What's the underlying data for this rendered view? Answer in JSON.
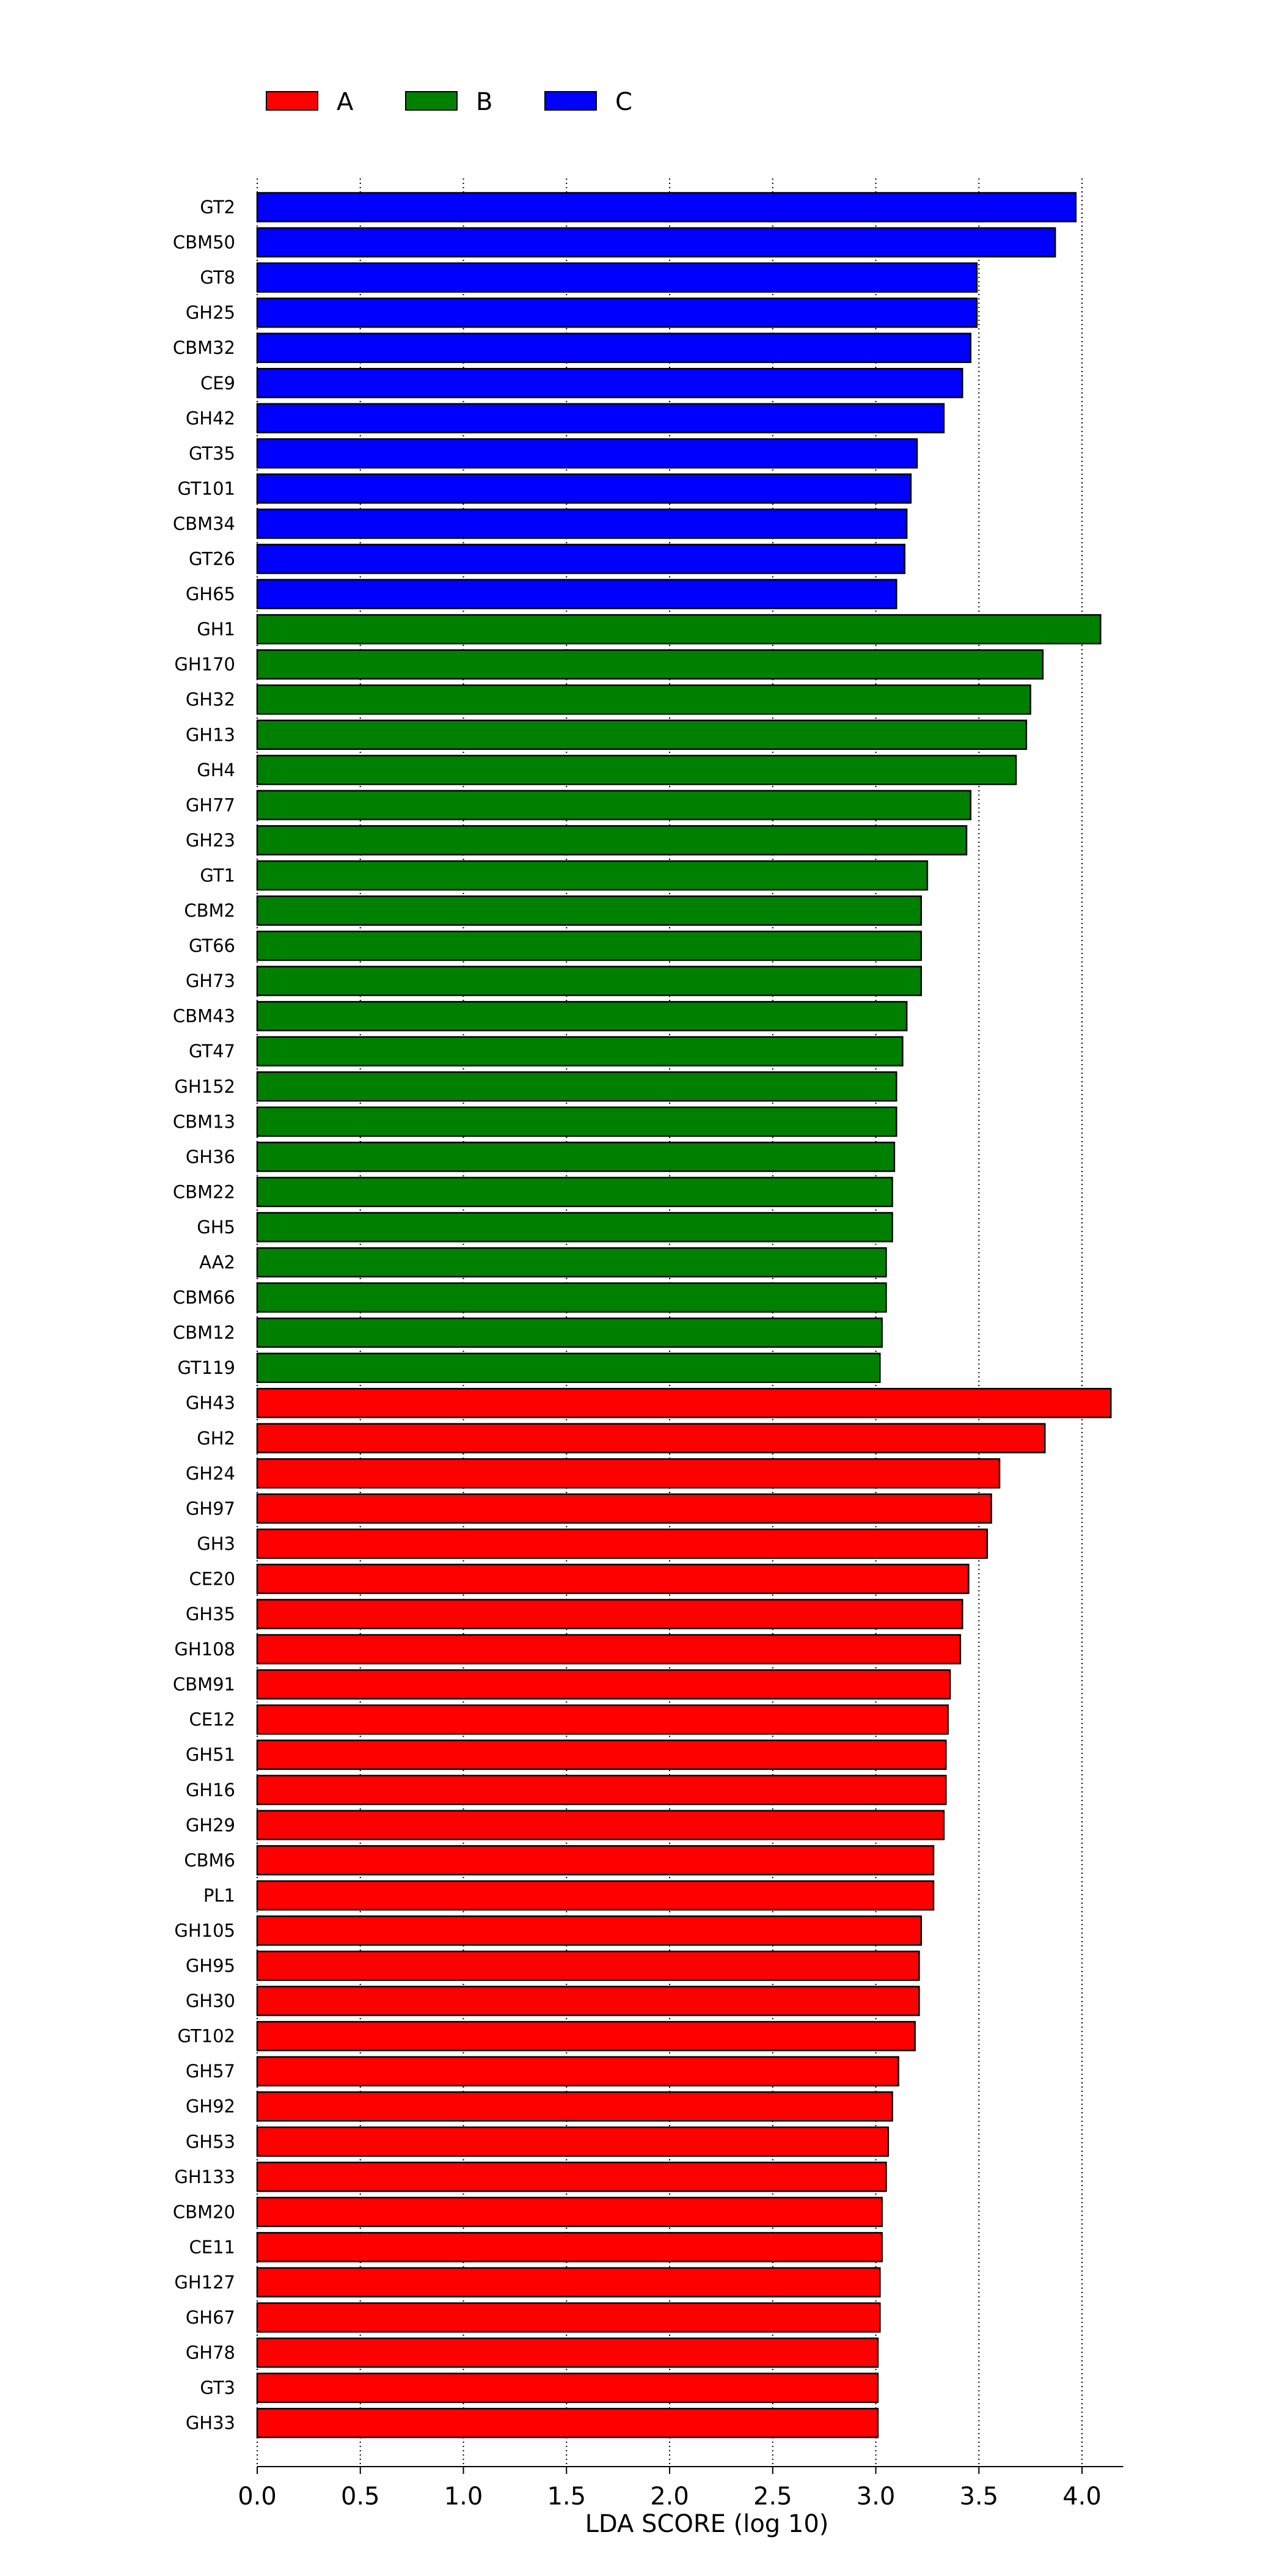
{
  "chart_data": {
    "type": "bar",
    "orientation": "horizontal",
    "xlabel": "LDA SCORE (log 10)",
    "xlim": [
      0,
      4.2
    ],
    "xticks": [
      "0.0",
      "0.5",
      "1.0",
      "1.5",
      "2.0",
      "2.5",
      "3.0",
      "3.5",
      "4.0"
    ],
    "grid": "vertical dotted",
    "legend_position": "top-left",
    "legend": [
      {
        "name": "A",
        "color": "#ff0000"
      },
      {
        "name": "B",
        "color": "#008000"
      },
      {
        "name": "C",
        "color": "#0000ff"
      }
    ],
    "bars": [
      {
        "label": "GT2",
        "value": 3.97,
        "group": "C"
      },
      {
        "label": "CBM50",
        "value": 3.87,
        "group": "C"
      },
      {
        "label": "GT8",
        "value": 3.49,
        "group": "C"
      },
      {
        "label": "GH25",
        "value": 3.49,
        "group": "C"
      },
      {
        "label": "CBM32",
        "value": 3.46,
        "group": "C"
      },
      {
        "label": "CE9",
        "value": 3.42,
        "group": "C"
      },
      {
        "label": "GH42",
        "value": 3.33,
        "group": "C"
      },
      {
        "label": "GT35",
        "value": 3.2,
        "group": "C"
      },
      {
        "label": "GT101",
        "value": 3.17,
        "group": "C"
      },
      {
        "label": "CBM34",
        "value": 3.15,
        "group": "C"
      },
      {
        "label": "GT26",
        "value": 3.14,
        "group": "C"
      },
      {
        "label": "GH65",
        "value": 3.1,
        "group": "C"
      },
      {
        "label": "GH1",
        "value": 4.09,
        "group": "B"
      },
      {
        "label": "GH170",
        "value": 3.81,
        "group": "B"
      },
      {
        "label": "GH32",
        "value": 3.75,
        "group": "B"
      },
      {
        "label": "GH13",
        "value": 3.73,
        "group": "B"
      },
      {
        "label": "GH4",
        "value": 3.68,
        "group": "B"
      },
      {
        "label": "GH77",
        "value": 3.46,
        "group": "B"
      },
      {
        "label": "GH23",
        "value": 3.44,
        "group": "B"
      },
      {
        "label": "GT1",
        "value": 3.25,
        "group": "B"
      },
      {
        "label": "CBM2",
        "value": 3.22,
        "group": "B"
      },
      {
        "label": "GT66",
        "value": 3.22,
        "group": "B"
      },
      {
        "label": "GH73",
        "value": 3.22,
        "group": "B"
      },
      {
        "label": "CBM43",
        "value": 3.15,
        "group": "B"
      },
      {
        "label": "GT47",
        "value": 3.13,
        "group": "B"
      },
      {
        "label": "GH152",
        "value": 3.1,
        "group": "B"
      },
      {
        "label": "CBM13",
        "value": 3.1,
        "group": "B"
      },
      {
        "label": "GH36",
        "value": 3.09,
        "group": "B"
      },
      {
        "label": "CBM22",
        "value": 3.08,
        "group": "B"
      },
      {
        "label": "GH5",
        "value": 3.08,
        "group": "B"
      },
      {
        "label": "AA2",
        "value": 3.05,
        "group": "B"
      },
      {
        "label": "CBM66",
        "value": 3.05,
        "group": "B"
      },
      {
        "label": "CBM12",
        "value": 3.03,
        "group": "B"
      },
      {
        "label": "GT119",
        "value": 3.02,
        "group": "B"
      },
      {
        "label": "GH43",
        "value": 4.14,
        "group": "A"
      },
      {
        "label": "GH2",
        "value": 3.82,
        "group": "A"
      },
      {
        "label": "GH24",
        "value": 3.6,
        "group": "A"
      },
      {
        "label": "GH97",
        "value": 3.56,
        "group": "A"
      },
      {
        "label": "GH3",
        "value": 3.54,
        "group": "A"
      },
      {
        "label": "CE20",
        "value": 3.45,
        "group": "A"
      },
      {
        "label": "GH35",
        "value": 3.42,
        "group": "A"
      },
      {
        "label": "GH108",
        "value": 3.41,
        "group": "A"
      },
      {
        "label": "CBM91",
        "value": 3.36,
        "group": "A"
      },
      {
        "label": "CE12",
        "value": 3.35,
        "group": "A"
      },
      {
        "label": "GH51",
        "value": 3.34,
        "group": "A"
      },
      {
        "label": "GH16",
        "value": 3.34,
        "group": "A"
      },
      {
        "label": "GH29",
        "value": 3.33,
        "group": "A"
      },
      {
        "label": "CBM6",
        "value": 3.28,
        "group": "A"
      },
      {
        "label": "PL1",
        "value": 3.28,
        "group": "A"
      },
      {
        "label": "GH105",
        "value": 3.22,
        "group": "A"
      },
      {
        "label": "GH95",
        "value": 3.21,
        "group": "A"
      },
      {
        "label": "GH30",
        "value": 3.21,
        "group": "A"
      },
      {
        "label": "GT102",
        "value": 3.19,
        "group": "A"
      },
      {
        "label": "GH57",
        "value": 3.11,
        "group": "A"
      },
      {
        "label": "GH92",
        "value": 3.08,
        "group": "A"
      },
      {
        "label": "GH53",
        "value": 3.06,
        "group": "A"
      },
      {
        "label": "GH133",
        "value": 3.05,
        "group": "A"
      },
      {
        "label": "CBM20",
        "value": 3.03,
        "group": "A"
      },
      {
        "label": "CE11",
        "value": 3.03,
        "group": "A"
      },
      {
        "label": "GH127",
        "value": 3.02,
        "group": "A"
      },
      {
        "label": "GH67",
        "value": 3.02,
        "group": "A"
      },
      {
        "label": "GH78",
        "value": 3.01,
        "group": "A"
      },
      {
        "label": "GT3",
        "value": 3.01,
        "group": "A"
      },
      {
        "label": "GH33",
        "value": 3.01,
        "group": "A"
      }
    ]
  }
}
